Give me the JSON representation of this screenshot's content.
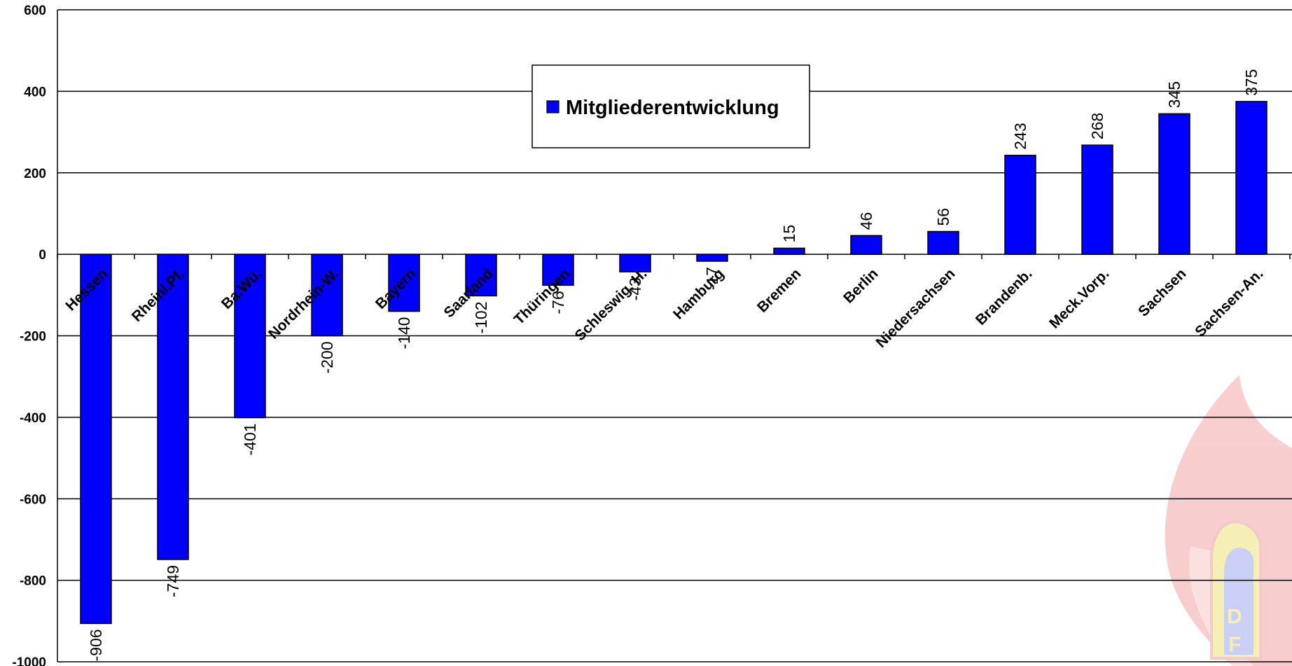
{
  "chart_data": {
    "type": "bar",
    "categories": [
      "Hessen",
      "Rheinl.Pf.",
      "Ba.Wü.",
      "Nordrhein-W.",
      "Bayern",
      "Saarland",
      "Thüringen",
      "Schleswig. H.",
      "Hamburg",
      "Bremen",
      "Berlin",
      "Niedersachsen",
      "Brandenb.",
      "Meck.Vorp.",
      "Sachsen",
      "Sachsen-An."
    ],
    "series": [
      {
        "name": "Mitgliederentwicklung",
        "values": [
          -906,
          -749,
          -401,
          -200,
          -140,
          -102,
          -76,
          -43,
          -17,
          15,
          46,
          56,
          243,
          268,
          345,
          375
        ]
      }
    ],
    "data_labels": [
      "-906",
      "-749",
      "-401",
      "-200",
      "-140",
      "-102",
      "-76",
      "-43",
      "-17",
      "15",
      "46",
      "56",
      "243",
      "268",
      "345",
      "375"
    ],
    "ylim": [
      -1000,
      600
    ],
    "yticks": [
      -1000,
      -800,
      -600,
      -400,
      -200,
      0,
      200,
      400,
      600
    ],
    "ytick_labels": [
      "-1000",
      "-800",
      "-600",
      "-400",
      "-200",
      "0",
      "200",
      "400",
      "600"
    ],
    "grid": true,
    "legend": "top-center",
    "bar_color": "#0000FF",
    "watermark": "DFV flame logo"
  }
}
